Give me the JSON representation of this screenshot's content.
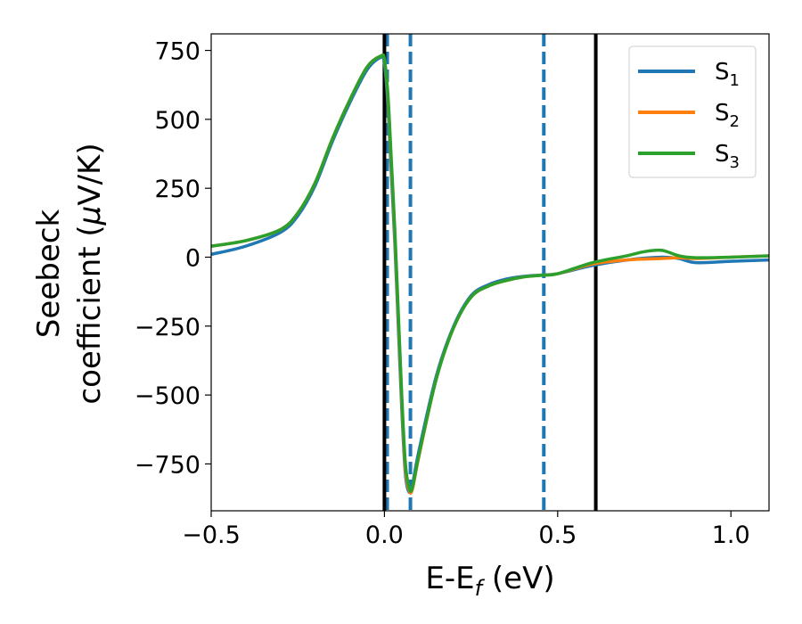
{
  "chart_data": {
    "type": "line",
    "xlabel_main": "E-E",
    "xlabel_sub": "f",
    "xlabel_unit": " (eV)",
    "ylabel_line1": "Seebeck",
    "ylabel_line2_prefix": "coefficient  (",
    "ylabel_mu": "μ",
    "ylabel_line2_suffix": "V/K)",
    "xlim": [
      -0.5,
      1.11
    ],
    "ylim": [
      -920,
      810
    ],
    "x_ticks": [
      -0.5,
      0.0,
      0.5,
      1.0
    ],
    "x_tick_labels": [
      "−0.5",
      "0.0",
      "0.5",
      "1.0"
    ],
    "y_ticks": [
      750,
      500,
      250,
      0,
      -250,
      -500,
      -750
    ],
    "y_tick_labels": [
      "750",
      "500",
      "250",
      "0",
      "−250",
      "−500",
      "−750"
    ],
    "legend_position": "top-right",
    "vlines_solid": [
      0.0,
      0.61
    ],
    "vlines_dashed": [
      0.008,
      0.075,
      0.46
    ],
    "series": [
      {
        "name": "S",
        "sub": "1",
        "color": "#1f77b4",
        "x": [
          -0.5,
          -0.4,
          -0.3,
          -0.25,
          -0.2,
          -0.15,
          -0.1,
          -0.05,
          -0.01,
          0.0,
          0.01,
          0.02,
          0.03,
          0.04,
          0.05,
          0.06,
          0.07,
          0.08,
          0.1,
          0.15,
          0.2,
          0.25,
          0.3,
          0.35,
          0.4,
          0.45,
          0.5,
          0.6,
          0.7,
          0.8,
          0.85,
          0.9,
          1.0,
          1.11
        ],
        "y": [
          10,
          40,
          90,
          150,
          260,
          420,
          560,
          680,
          725,
          700,
          550,
          300,
          50,
          -250,
          -550,
          -780,
          -850,
          -830,
          -700,
          -430,
          -250,
          -140,
          -100,
          -80,
          -70,
          -65,
          -60,
          -30,
          -10,
          0,
          -5,
          -20,
          -15,
          -10
        ]
      },
      {
        "name": "S",
        "sub": "2",
        "color": "#ff7f0e",
        "x": [
          -0.5,
          -0.4,
          -0.3,
          -0.25,
          -0.2,
          -0.15,
          -0.1,
          -0.05,
          -0.01,
          0.0,
          0.01,
          0.02,
          0.03,
          0.04,
          0.05,
          0.06,
          0.07,
          0.08,
          0.1,
          0.15,
          0.2,
          0.25,
          0.3,
          0.35,
          0.4,
          0.45,
          0.5,
          0.6,
          0.7,
          0.8,
          0.85,
          0.9,
          1.0,
          1.11
        ],
        "y": [
          40,
          60,
          100,
          160,
          270,
          430,
          570,
          690,
          730,
          715,
          580,
          330,
          80,
          -220,
          -520,
          -760,
          -840,
          -845,
          -720,
          -440,
          -255,
          -145,
          -105,
          -85,
          -72,
          -66,
          -60,
          -25,
          -10,
          -5,
          -2,
          -5,
          0,
          5
        ]
      },
      {
        "name": "S",
        "sub": "3",
        "color": "#2ca02c",
        "x": [
          -0.5,
          -0.4,
          -0.3,
          -0.25,
          -0.2,
          -0.15,
          -0.1,
          -0.05,
          -0.01,
          0.0,
          0.01,
          0.02,
          0.03,
          0.04,
          0.05,
          0.06,
          0.07,
          0.08,
          0.1,
          0.15,
          0.2,
          0.25,
          0.3,
          0.35,
          0.4,
          0.45,
          0.5,
          0.6,
          0.7,
          0.75,
          0.8,
          0.85,
          0.9,
          1.0,
          1.11
        ],
        "y": [
          40,
          60,
          100,
          160,
          270,
          430,
          570,
          690,
          730,
          715,
          590,
          350,
          100,
          -200,
          -500,
          -740,
          -830,
          -840,
          -715,
          -440,
          -255,
          -145,
          -105,
          -85,
          -72,
          -66,
          -60,
          -20,
          5,
          20,
          25,
          5,
          -2,
          0,
          5
        ]
      }
    ]
  }
}
